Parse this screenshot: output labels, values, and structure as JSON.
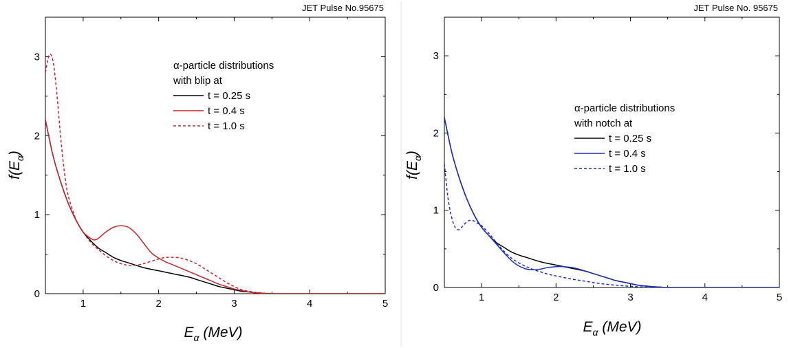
{
  "chart_data": [
    {
      "type": "line",
      "header": "JET Pulse No.95675",
      "xlabel": {
        "main": "E",
        "sub": "α",
        "rest": " (MeV)"
      },
      "ylabel": {
        "main": "f(E",
        "sub": "α",
        "rest": ")"
      },
      "xlim": [
        0.5,
        5
      ],
      "ylim": [
        0,
        3.5
      ],
      "xticks": [
        "1",
        "2",
        "3",
        "4",
        "5"
      ],
      "yticks": [
        "0",
        "1",
        "2",
        "3"
      ],
      "legend": {
        "title_lines": [
          "α-particle distributions",
          "with blip at"
        ],
        "placement": "top-center"
      },
      "series": [
        {
          "name": "t = 0.25 s",
          "color": "#000000",
          "dash": "solid",
          "x": [
            0.5,
            0.6,
            0.7,
            0.8,
            0.9,
            1.0,
            1.1,
            1.2,
            1.3,
            1.4,
            1.5,
            1.6,
            1.8,
            2.0,
            2.2,
            2.4,
            2.5,
            2.6,
            2.7,
            2.8,
            2.9,
            3.0,
            3.1,
            3.2,
            3.3,
            3.4,
            3.5,
            4.0,
            5.0
          ],
          "y": [
            2.2,
            1.75,
            1.42,
            1.15,
            0.94,
            0.78,
            0.67,
            0.58,
            0.52,
            0.46,
            0.42,
            0.39,
            0.33,
            0.29,
            0.25,
            0.21,
            0.18,
            0.15,
            0.12,
            0.09,
            0.07,
            0.05,
            0.03,
            0.02,
            0.01,
            0.005,
            0,
            0,
            0
          ]
        },
        {
          "name": "t = 0.4 s",
          "color": "#c0272d",
          "dash": "solid",
          "x": [
            0.5,
            0.6,
            0.7,
            0.8,
            0.9,
            1.0,
            1.1,
            1.15,
            1.2,
            1.3,
            1.4,
            1.5,
            1.6,
            1.7,
            1.8,
            1.9,
            2.0,
            2.1,
            2.2,
            2.3,
            2.4,
            2.5,
            2.6,
            2.7,
            2.8,
            2.9,
            3.0,
            3.1,
            3.2,
            3.3,
            3.4,
            3.5,
            4.0,
            5.0
          ],
          "y": [
            2.2,
            1.75,
            1.42,
            1.15,
            0.94,
            0.78,
            0.7,
            0.68,
            0.7,
            0.78,
            0.84,
            0.86,
            0.84,
            0.76,
            0.64,
            0.52,
            0.45,
            0.4,
            0.36,
            0.32,
            0.28,
            0.24,
            0.2,
            0.16,
            0.12,
            0.09,
            0.06,
            0.04,
            0.02,
            0.01,
            0.005,
            0,
            0,
            0
          ]
        },
        {
          "name": "t = 1.0 s",
          "color": "#c0272d",
          "dash": "dashed",
          "x": [
            0.5,
            0.55,
            0.6,
            0.65,
            0.7,
            0.75,
            0.8,
            0.9,
            1.0,
            1.1,
            1.2,
            1.3,
            1.4,
            1.5,
            1.6,
            1.7,
            1.8,
            1.9,
            2.0,
            2.1,
            2.2,
            2.3,
            2.4,
            2.5,
            2.6,
            2.7,
            2.8,
            2.9,
            3.0,
            3.1,
            3.2,
            3.3,
            3.4,
            3.5,
            4.0,
            5.0
          ],
          "y": [
            2.8,
            3.02,
            2.95,
            2.55,
            2.0,
            1.55,
            1.25,
            0.95,
            0.78,
            0.65,
            0.56,
            0.48,
            0.42,
            0.38,
            0.36,
            0.36,
            0.38,
            0.41,
            0.44,
            0.46,
            0.46,
            0.45,
            0.42,
            0.38,
            0.32,
            0.26,
            0.2,
            0.14,
            0.09,
            0.05,
            0.03,
            0.015,
            0.005,
            0,
            0,
            0
          ]
        }
      ]
    },
    {
      "type": "line",
      "header": "JET Pulse No. 95675",
      "xlabel": {
        "main": "E",
        "sub": "α",
        "rest": " (MeV)"
      },
      "ylabel": {
        "main": "f(E",
        "sub": "α",
        "rest": ")"
      },
      "xlim": [
        0.5,
        5
      ],
      "ylim": [
        0,
        3.5
      ],
      "xticks": [
        "1",
        "2",
        "3",
        "4",
        "5"
      ],
      "yticks": [
        "0",
        "1",
        "2",
        "3"
      ],
      "legend": {
        "title_lines": [
          "α-particle distributions",
          "with notch at"
        ],
        "placement": "center"
      },
      "series": [
        {
          "name": "t = 0.25 s",
          "color": "#000000",
          "dash": "solid",
          "x": [
            0.5,
            0.6,
            0.7,
            0.8,
            0.9,
            1.0,
            1.1,
            1.2,
            1.3,
            1.4,
            1.5,
            1.6,
            1.8,
            2.0,
            2.2,
            2.4,
            2.5,
            2.6,
            2.7,
            2.8,
            2.9,
            3.0,
            3.1,
            3.2,
            3.3,
            3.4,
            3.5,
            4.0,
            5.0
          ],
          "y": [
            2.2,
            1.75,
            1.42,
            1.15,
            0.94,
            0.78,
            0.67,
            0.58,
            0.52,
            0.46,
            0.42,
            0.39,
            0.33,
            0.29,
            0.25,
            0.21,
            0.18,
            0.15,
            0.12,
            0.09,
            0.07,
            0.05,
            0.03,
            0.02,
            0.01,
            0.005,
            0,
            0,
            0
          ]
        },
        {
          "name": "t = 0.4 s",
          "color": "#1f2fb3",
          "dash": "solid",
          "x": [
            0.5,
            0.6,
            0.7,
            0.8,
            0.9,
            1.0,
            1.1,
            1.2,
            1.3,
            1.4,
            1.5,
            1.6,
            1.7,
            1.8,
            1.9,
            2.0,
            2.1,
            2.2,
            2.3,
            2.4,
            2.5,
            2.6,
            2.7,
            2.8,
            2.9,
            3.0,
            3.1,
            3.2,
            3.3,
            3.4,
            3.5,
            4.0,
            5.0
          ],
          "y": [
            2.2,
            1.75,
            1.42,
            1.15,
            0.94,
            0.78,
            0.67,
            0.56,
            0.45,
            0.35,
            0.28,
            0.24,
            0.23,
            0.24,
            0.26,
            0.27,
            0.27,
            0.26,
            0.24,
            0.21,
            0.18,
            0.15,
            0.12,
            0.09,
            0.07,
            0.05,
            0.03,
            0.02,
            0.01,
            0.005,
            0,
            0,
            0
          ]
        },
        {
          "name": "t = 1.0 s",
          "color": "#1f2fb3",
          "dash": "dashed",
          "x": [
            0.5,
            0.55,
            0.6,
            0.65,
            0.7,
            0.75,
            0.8,
            0.85,
            0.9,
            0.95,
            1.0,
            1.1,
            1.2,
            1.3,
            1.4,
            1.5,
            1.6,
            1.7,
            1.8,
            1.9,
            2.0,
            2.2,
            2.4,
            2.6,
            2.8,
            3.0,
            3.2,
            3.4,
            3.5,
            4.0,
            5.0
          ],
          "y": [
            1.6,
            1.15,
            0.9,
            0.77,
            0.75,
            0.8,
            0.85,
            0.87,
            0.86,
            0.83,
            0.8,
            0.7,
            0.58,
            0.47,
            0.38,
            0.32,
            0.27,
            0.23,
            0.2,
            0.17,
            0.15,
            0.11,
            0.08,
            0.05,
            0.03,
            0.015,
            0.005,
            0,
            0,
            0,
            0
          ]
        }
      ]
    }
  ]
}
